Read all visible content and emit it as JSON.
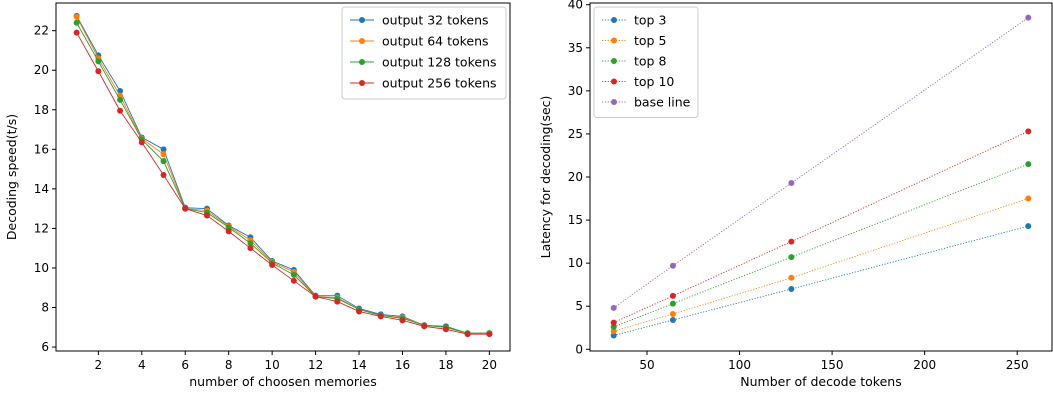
{
  "chart_data": [
    {
      "type": "line",
      "xlabel": "number of choosen memories",
      "ylabel": "Decoding speed(t/s)",
      "xlim": [
        0.05,
        20.95
      ],
      "ylim": [
        5.8,
        23.4
      ],
      "xticks": [
        2,
        4,
        6,
        8,
        10,
        12,
        14,
        16,
        18,
        20
      ],
      "yticks": [
        6,
        8,
        10,
        12,
        14,
        16,
        18,
        20,
        22
      ],
      "line_style": "solid",
      "legend_position": "top-right",
      "grid": false,
      "x": [
        1,
        2,
        3,
        4,
        5,
        6,
        7,
        8,
        9,
        10,
        11,
        12,
        13,
        14,
        15,
        16,
        17,
        18,
        19,
        20
      ],
      "series": [
        {
          "name": "output 32 tokens",
          "color": "#1f77b4",
          "values": [
            22.75,
            20.75,
            18.95,
            16.6,
            16.0,
            13.05,
            13.0,
            12.15,
            11.55,
            10.35,
            9.9,
            8.6,
            8.6,
            7.95,
            7.65,
            7.55,
            7.1,
            7.05,
            6.7,
            6.7
          ]
        },
        {
          "name": "output 64 tokens",
          "color": "#ff7f0e",
          "values": [
            22.7,
            20.6,
            18.7,
            16.55,
            15.75,
            13.0,
            12.9,
            12.1,
            11.4,
            10.3,
            9.8,
            8.55,
            8.5,
            7.9,
            7.6,
            7.5,
            7.1,
            7.0,
            6.7,
            6.7
          ]
        },
        {
          "name": "output 128 tokens",
          "color": "#2ca02c",
          "values": [
            22.4,
            20.45,
            18.5,
            16.5,
            15.4,
            13.0,
            12.8,
            12.05,
            11.25,
            10.25,
            9.65,
            8.55,
            8.45,
            7.9,
            7.6,
            7.45,
            7.1,
            7.0,
            6.7,
            6.7
          ]
        },
        {
          "name": "output 256 tokens",
          "color": "#d62728",
          "values": [
            21.9,
            19.95,
            17.95,
            16.35,
            14.7,
            13.0,
            12.65,
            11.85,
            11.0,
            10.15,
            9.35,
            8.55,
            8.3,
            7.8,
            7.55,
            7.35,
            7.05,
            6.9,
            6.65,
            6.65
          ]
        }
      ]
    },
    {
      "type": "line",
      "xlabel": "Number of decode tokens",
      "ylabel": "Latency for decoding(sec)",
      "xlim": [
        19.2,
        268.8
      ],
      "ylim": [
        -0.2,
        40.2
      ],
      "xticks": [
        50,
        100,
        150,
        200,
        250
      ],
      "yticks": [
        0,
        5,
        10,
        15,
        20,
        25,
        30,
        35,
        40
      ],
      "line_style": "dotted",
      "legend_position": "top-left",
      "grid": false,
      "x": [
        32,
        64,
        128,
        256
      ],
      "series": [
        {
          "name": "top 3",
          "color": "#1f77b4",
          "values": [
            1.6,
            3.4,
            7.0,
            14.3
          ]
        },
        {
          "name": "top 5",
          "color": "#ff7f0e",
          "values": [
            2.1,
            4.1,
            8.3,
            17.5
          ]
        },
        {
          "name": "top 8",
          "color": "#2ca02c",
          "values": [
            2.6,
            5.3,
            10.7,
            21.5
          ]
        },
        {
          "name": "top 10",
          "color": "#d62728",
          "values": [
            3.1,
            6.2,
            12.5,
            25.3
          ]
        },
        {
          "name": "base line",
          "color": "#9467bd",
          "values": [
            4.8,
            9.7,
            19.3,
            38.5
          ]
        }
      ]
    }
  ]
}
